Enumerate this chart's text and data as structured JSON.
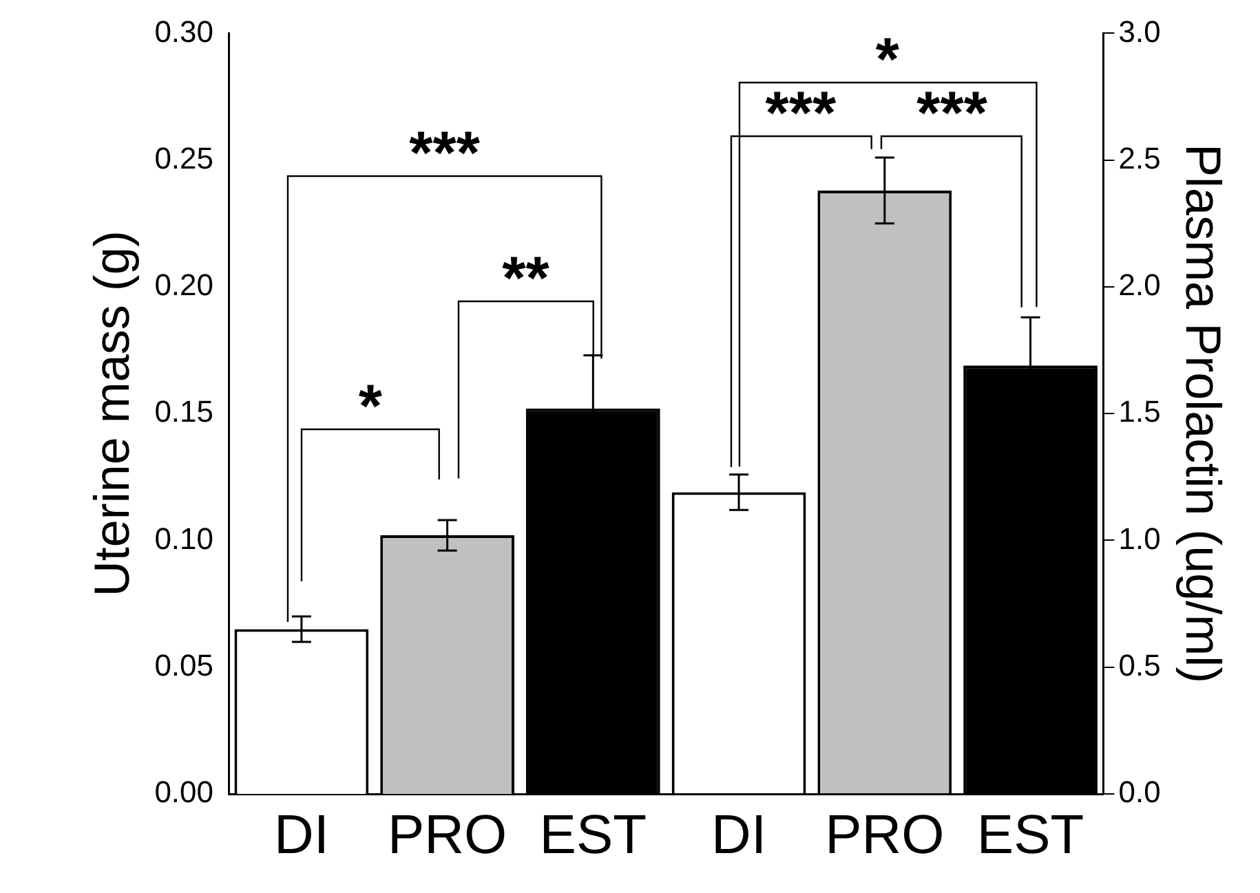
{
  "chart_data": {
    "type": "bar",
    "ylabel": "Uterine mass (g)",
    "y2label": "Plasma Prolactin (ug/ml)",
    "categories": [
      "DI",
      "PRO",
      "EST",
      "DI",
      "PRO",
      "EST"
    ],
    "series": [
      {
        "colors": [
          "#ffffff",
          "#c0c0c0",
          "#000000",
          null,
          null,
          null
        ],
        "values": [
          0.065,
          0.102,
          0.152,
          null,
          null,
          null
        ],
        "errors": [
          0.005,
          0.006,
          0.021,
          null,
          null,
          null
        ]
      },
      {
        "axis": "y2",
        "colors": [
          null,
          null,
          null,
          "#ffffff",
          "#c0c0c0",
          "#000000"
        ],
        "values": [
          null,
          null,
          null,
          1.19,
          2.38,
          1.69
        ],
        "errors": [
          null,
          null,
          null,
          0.07,
          0.13,
          0.19
        ]
      }
    ],
    "ylim": [
      0,
      0.3
    ],
    "yticks": [
      {
        "value": 0,
        "label": "0.00"
      },
      {
        "value": 0.05,
        "label": "0.05"
      },
      {
        "value": 0.1,
        "label": "0.10"
      },
      {
        "value": 0.15,
        "label": "0.15"
      },
      {
        "value": 0.2,
        "label": "0.20"
      },
      {
        "value": 0.25,
        "label": "0.25"
      },
      {
        "value": 0.3,
        "label": "0.30"
      }
    ],
    "y2lim": [
      0,
      3
    ],
    "y2ticks": [
      {
        "value": 0,
        "label": "0.0"
      },
      {
        "value": 0.5,
        "label": "0.5"
      },
      {
        "value": 1,
        "label": "1.0"
      },
      {
        "value": 1.5,
        "label": "1.5"
      },
      {
        "value": 2,
        "label": "2.0"
      },
      {
        "value": 2.5,
        "label": "2.5"
      },
      {
        "value": 3,
        "label": "3.0"
      }
    ],
    "grid": false,
    "legend": false,
    "annotations": [
      "*",
      "**",
      "***",
      "***",
      "***",
      "*"
    ]
  }
}
